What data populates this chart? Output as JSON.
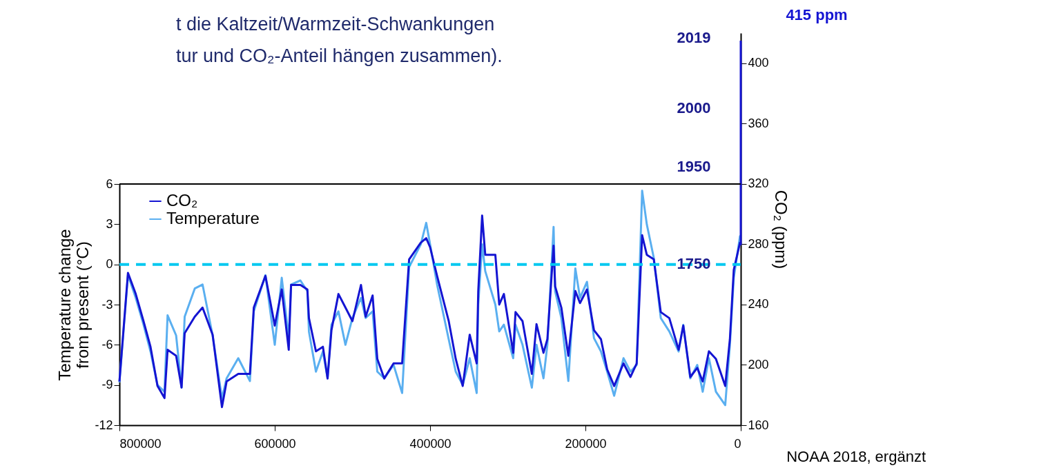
{
  "chart_data": {
    "type": "line",
    "title": "t die Kaltzeit/Warmzeit-Schwankungen\ntur und CO₂-Anteil hängen zusammen).",
    "ylabel": "Temperature change\nfrom present (°C)",
    "y2label": "CO₂ (ppm)",
    "xlim": [
      800000,
      0
    ],
    "xticks": [
      800000,
      600000,
      400000,
      200000,
      0
    ],
    "ylim": [
      -12,
      6
    ],
    "yticks": [
      -12,
      -9,
      -6,
      -3,
      0,
      3,
      6
    ],
    "y2lim": [
      160,
      420
    ],
    "y2ticks": [
      160,
      200,
      240,
      280,
      320,
      360,
      400
    ],
    "grid": false,
    "legend": "top left",
    "marker": "none",
    "line_style": "solid",
    "series": [
      {
        "name": "CO₂",
        "color": "#1414d2",
        "axis": "y2",
        "x": [
          800000,
          789000,
          779000,
          769000,
          760000,
          751000,
          742000,
          738000,
          727000,
          720000,
          716000,
          703000,
          693000,
          680000,
          668000,
          662000,
          647000,
          632000,
          627000,
          612000,
          600000,
          591000,
          582000,
          579000,
          567000,
          558000,
          556000,
          547000,
          538000,
          532000,
          527000,
          518000,
          509000,
          500000,
          489000,
          483000,
          474000,
          468000,
          459000,
          447000,
          436000,
          427000,
          412000,
          405000,
          400000,
          391000,
          376000,
          367000,
          358000,
          349000,
          340000,
          338000,
          333000,
          329000,
          316000,
          311000,
          305000,
          293000,
          290000,
          281000,
          269000,
          263000,
          254000,
          249000,
          241000,
          239000,
          231000,
          222000,
          213000,
          207000,
          198000,
          189000,
          180000,
          172000,
          163000,
          151000,
          142000,
          134000,
          127000,
          121000,
          112000,
          103000,
          92000,
          80000,
          74000,
          65000,
          56000,
          49000,
          41000,
          32000,
          20000,
          14000,
          9000,
          1000,
          0,
          0,
          0,
          0
        ],
        "values": [
          189,
          261,
          247,
          229,
          212,
          186,
          178,
          210,
          206,
          185,
          221,
          232,
          238,
          220,
          172,
          189,
          194,
          194,
          238,
          259,
          226,
          250,
          210,
          253,
          253,
          250,
          231,
          209,
          212,
          191,
          223,
          247,
          238,
          229,
          253,
          232,
          246,
          204,
          191,
          201,
          201,
          270,
          281,
          284,
          278,
          259,
          229,
          204,
          186,
          220,
          201,
          249,
          299,
          273,
          273,
          240,
          247,
          208,
          235,
          229,
          194,
          227,
          208,
          217,
          279,
          252,
          238,
          206,
          249,
          241,
          250,
          223,
          217,
          197,
          186,
          201,
          192,
          201,
          286,
          273,
          270,
          235,
          231,
          210,
          226,
          192,
          198,
          189,
          209,
          204,
          186,
          217,
          263,
          281,
          280,
          310,
          370,
          415
        ]
      },
      {
        "name": "Temperature",
        "color": "#5aaff0",
        "x": [
          800000,
          789000,
          779000,
          769000,
          760000,
          751000,
          742000,
          738000,
          727000,
          720000,
          716000,
          703000,
          693000,
          680000,
          668000,
          662000,
          647000,
          632000,
          627000,
          612000,
          600000,
          591000,
          582000,
          579000,
          567000,
          558000,
          556000,
          547000,
          538000,
          532000,
          527000,
          518000,
          509000,
          500000,
          489000,
          483000,
          474000,
          468000,
          459000,
          447000,
          436000,
          427000,
          412000,
          405000,
          400000,
          391000,
          376000,
          367000,
          358000,
          349000,
          340000,
          338000,
          333000,
          329000,
          316000,
          311000,
          305000,
          293000,
          290000,
          281000,
          269000,
          263000,
          254000,
          249000,
          241000,
          239000,
          231000,
          222000,
          213000,
          207000,
          198000,
          189000,
          180000,
          172000,
          163000,
          151000,
          142000,
          134000,
          127000,
          121000,
          112000,
          103000,
          92000,
          80000,
          74000,
          65000,
          56000,
          49000,
          41000,
          32000,
          20000,
          14000,
          9000,
          1000,
          0
        ],
        "values": [
          -8.8,
          -0.8,
          -2.5,
          -4.5,
          -6.5,
          -9,
          -9.5,
          -3.8,
          -5.3,
          -9.2,
          -3.9,
          -1.8,
          -1.5,
          -5.3,
          -10,
          -8.5,
          -7,
          -8.7,
          -3.5,
          -0.8,
          -6,
          -1,
          -5.5,
          -1.5,
          -1.2,
          -2,
          -5,
          -8,
          -6.5,
          -8.5,
          -4.5,
          -3.5,
          -6,
          -4,
          -2.5,
          -4,
          -3.5,
          -8,
          -8.5,
          -7.5,
          -9.6,
          -0.2,
          1.5,
          3.1,
          1.5,
          -1.5,
          -5.6,
          -8,
          -9,
          -7,
          -9.6,
          -3,
          1.5,
          -0.5,
          -3,
          -5,
          -4.5,
          -7,
          -4.5,
          -6,
          -9.2,
          -6,
          -8.5,
          -6,
          2.8,
          -2,
          -4,
          -8.7,
          -0.3,
          -2.5,
          -1.3,
          -5.5,
          -6.5,
          -8,
          -9.8,
          -7,
          -8,
          -7.5,
          5.5,
          3,
          0.5,
          -4,
          -5,
          -6.5,
          -4.5,
          -8.5,
          -7.5,
          -9.5,
          -7,
          -9.5,
          -10.5,
          -6,
          -1,
          2.1,
          2
        ]
      }
    ],
    "ref_lines": [
      {
        "axis": "y",
        "value": 0,
        "color": "#00c8f0",
        "line_style": "dashed"
      }
    ],
    "annotations": [
      "2019",
      "2000",
      "1950",
      "1750",
      "415 ppm",
      "NOAA 2018, ergänzt"
    ]
  }
}
